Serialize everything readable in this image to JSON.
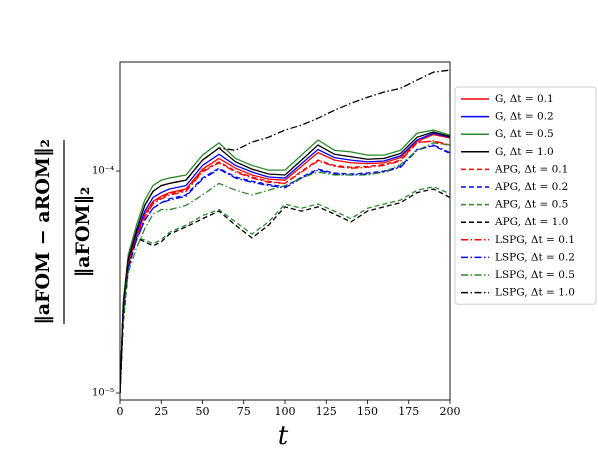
{
  "chart_data": {
    "type": "line",
    "xlabel": "t",
    "ylabel": {
      "numerator": "‖aFOM − aROM‖₂",
      "denominator": "‖aFOM‖₂"
    },
    "x": [
      0,
      2,
      5,
      10,
      15,
      20,
      25,
      30,
      40,
      50,
      60,
      70,
      80,
      90,
      100,
      110,
      120,
      130,
      140,
      150,
      160,
      170,
      180,
      190,
      200
    ],
    "xlim": [
      0,
      200
    ],
    "xticks": [
      0,
      25,
      50,
      75,
      100,
      125,
      150,
      175,
      200
    ],
    "ylim": [
      9.3e-06,
      0.00031
    ],
    "log_y": true,
    "yticks": [
      {
        "value": 1e-05,
        "label": "10⁻⁵"
      },
      {
        "value": 0.0001,
        "label": "10⁻⁴"
      }
    ],
    "legend": "outside-right",
    "series": [
      {
        "name": "G, Δt = 0.1",
        "color": "#ff0000",
        "linestyle": "solid",
        "values": [
          1e-05,
          2.4e-05,
          3.8e-05,
          5.1e-05,
          6.4e-05,
          7.3e-05,
          7.7e-05,
          8e-05,
          8.3e-05,
          0.000102,
          0.000114,
          0.000103,
          9.6e-05,
          9.2e-05,
          9.1e-05,
          0.000105,
          0.000121,
          0.000112,
          0.000109,
          0.000108,
          0.000109,
          0.000115,
          0.000136,
          0.000146,
          0.000141
        ]
      },
      {
        "name": "G, Δt = 0.2",
        "color": "#0000ff",
        "linestyle": "solid",
        "values": [
          1e-05,
          2.5e-05,
          3.9e-05,
          5.2e-05,
          6.6e-05,
          7.6e-05,
          8e-05,
          8.3e-05,
          8.6e-05,
          0.000106,
          0.000119,
          0.000106,
          9.9e-05,
          9.4e-05,
          9.3e-05,
          0.000108,
          0.000125,
          0.000115,
          0.000112,
          0.00011,
          0.000111,
          0.000117,
          0.000138,
          0.000148,
          0.000142
        ]
      },
      {
        "name": "G, Δt = 0.5",
        "color": "#2a8a2a",
        "linestyle": "solid",
        "values": [
          1e-05,
          2.6e-05,
          4.2e-05,
          5.7e-05,
          7.4e-05,
          8.6e-05,
          9.1e-05,
          9.3e-05,
          9.6e-05,
          0.000118,
          0.000134,
          0.000114,
          0.000106,
          0.000101,
          0.000101,
          0.000118,
          0.000138,
          0.000124,
          0.000122,
          0.000118,
          0.000118,
          0.000124,
          0.000148,
          0.000153,
          0.000145
        ]
      },
      {
        "name": "G, Δt = 1.0",
        "color": "#000000",
        "linestyle": "solid",
        "values": [
          1e-05,
          2.5e-05,
          4e-05,
          5.4e-05,
          7e-05,
          8.1e-05,
          8.6e-05,
          8.8e-05,
          9.1e-05,
          0.000112,
          0.000127,
          0.00011,
          0.000102,
          9.7e-05,
          9.6e-05,
          0.000112,
          0.000131,
          0.000119,
          0.000116,
          0.000113,
          0.000114,
          0.00012,
          0.000142,
          0.00015,
          0.000143
        ]
      },
      {
        "name": "APG, Δt = 0.1",
        "color": "#ff0000",
        "linestyle": "dashed",
        "values": [
          1e-05,
          2.4e-05,
          3.8e-05,
          5.1e-05,
          6.3e-05,
          7.2e-05,
          7.6e-05,
          7.9e-05,
          8.2e-05,
          0.0001,
          0.00011,
          0.0001,
          9.4e-05,
          9e-05,
          8.8e-05,
          0.0001,
          0.000112,
          0.000106,
          0.000104,
          0.000105,
          0.000107,
          0.000112,
          0.000135,
          0.000136,
          0.00013
        ]
      },
      {
        "name": "APG, Δt = 0.2",
        "color": "#0000ff",
        "linestyle": "dashed",
        "values": [
          1e-05,
          2.3e-05,
          3.7e-05,
          4.9e-05,
          6e-05,
          6.8e-05,
          7.2e-05,
          7.5e-05,
          7.8e-05,
          9.3e-05,
          0.000103,
          9.4e-05,
          9e-05,
          8.7e-05,
          8.5e-05,
          9.4e-05,
          0.000102,
          9.8e-05,
          9.7e-05,
          9.8e-05,
          0.0001,
          0.000105,
          0.000125,
          0.00013,
          0.00012
        ]
      },
      {
        "name": "APG, Δt = 0.5",
        "color": "#2a8a2a",
        "linestyle": "dashed",
        "values": [
          1e-05,
          2.1e-05,
          3.6e-05,
          5e-05,
          4.9e-05,
          4.7e-05,
          4.9e-05,
          5.3e-05,
          5.7e-05,
          6.3e-05,
          6.7e-05,
          5.9e-05,
          5.2e-05,
          5.9e-05,
          7.1e-05,
          6.8e-05,
          7.1e-05,
          6.6e-05,
          6.1e-05,
          6.8e-05,
          7.1e-05,
          7.4e-05,
          8.2e-05,
          8.5e-05,
          7.9e-05
        ]
      },
      {
        "name": "APG, Δt = 1.0",
        "color": "#000000",
        "linestyle": "dashed",
        "values": [
          1e-05,
          2.1e-05,
          3.6e-05,
          5e-05,
          4.8e-05,
          4.6e-05,
          4.8e-05,
          5.2e-05,
          5.6e-05,
          6.1e-05,
          6.6e-05,
          5.7e-05,
          5e-05,
          5.7e-05,
          6.9e-05,
          6.6e-05,
          6.9e-05,
          6.4e-05,
          5.9e-05,
          6.6e-05,
          6.9e-05,
          7.2e-05,
          8e-05,
          8.3e-05,
          7.6e-05
        ]
      },
      {
        "name": "LSPG, Δt = 0.1",
        "color": "#ff0000",
        "linestyle": "dashdot",
        "values": [
          1e-05,
          2.4e-05,
          3.8e-05,
          5e-05,
          6.2e-05,
          7.1e-05,
          7.5e-05,
          7.8e-05,
          8.1e-05,
          9.9e-05,
          0.000109,
          9.9e-05,
          9.3e-05,
          8.9e-05,
          8.8e-05,
          9.9e-05,
          0.000111,
          0.000105,
          0.000103,
          0.000104,
          0.000106,
          0.000111,
          0.000134,
          0.000137,
          0.000131
        ]
      },
      {
        "name": "LSPG, Δt = 0.2",
        "color": "#0000ff",
        "linestyle": "dashdot",
        "values": [
          1e-05,
          2.3e-05,
          3.7e-05,
          4.9e-05,
          6e-05,
          6.8e-05,
          7.2e-05,
          7.4e-05,
          7.7e-05,
          9.2e-05,
          0.000102,
          9.3e-05,
          8.9e-05,
          8.6e-05,
          8.4e-05,
          9.3e-05,
          0.000101,
          9.7e-05,
          9.6e-05,
          9.7e-05,
          9.9e-05,
          0.000104,
          0.000124,
          0.000131,
          0.000121
        ]
      },
      {
        "name": "LSPG, Δt = 0.5",
        "color": "#2a8a2a",
        "linestyle": "dashdot",
        "values": [
          1e-05,
          2.2e-05,
          3.5e-05,
          4.5e-05,
          5.5e-05,
          6.4e-05,
          6.7e-05,
          6.7e-05,
          7e-05,
          7.8e-05,
          8.8e-05,
          8.2e-05,
          7.8e-05,
          8.2e-05,
          8.6e-05,
          9.3e-05,
          9.9e-05,
          9.6e-05,
          9.6e-05,
          9.6e-05,
          9.9e-05,
          0.000107,
          0.000124,
          0.000134,
          0.000131
        ]
      },
      {
        "name": "LSPG, Δt = 1.0",
        "color": "#000000",
        "linestyle": "dashdot",
        "values": [
          1e-05,
          2.5e-05,
          4e-05,
          5.4e-05,
          7e-05,
          8.1e-05,
          8.6e-05,
          8.8e-05,
          9.1e-05,
          0.000112,
          0.000127,
          0.000124,
          0.000135,
          0.000142,
          0.000153,
          0.000161,
          0.000173,
          0.000188,
          0.000202,
          0.000215,
          0.000227,
          0.000236,
          0.000257,
          0.000279,
          0.000285
        ]
      }
    ]
  }
}
